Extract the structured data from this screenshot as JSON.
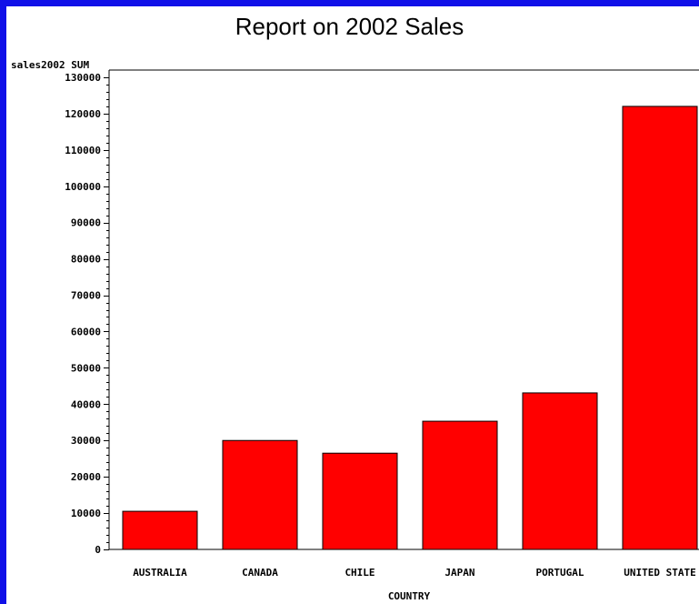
{
  "chart_data": {
    "type": "bar",
    "title": "Report on 2002 Sales",
    "ylabel": "sales2002 SUM",
    "xlabel": "COUNTRY",
    "categories": [
      "AUSTRALIA",
      "CANADA",
      "CHILE",
      "JAPAN",
      "PORTUGAL",
      "UNITED STATE"
    ],
    "values": [
      10500,
      30000,
      26500,
      35300,
      43100,
      122000
    ],
    "ylim": [
      0,
      130000
    ],
    "y_ticks": [
      0,
      10000,
      20000,
      30000,
      40000,
      50000,
      60000,
      70000,
      80000,
      90000,
      100000,
      110000,
      120000,
      130000
    ],
    "grid": false,
    "legend": "none",
    "colors": {
      "bar_fill": "#ff0000",
      "bar_stroke": "#000000",
      "frame": "#1010e8"
    }
  }
}
